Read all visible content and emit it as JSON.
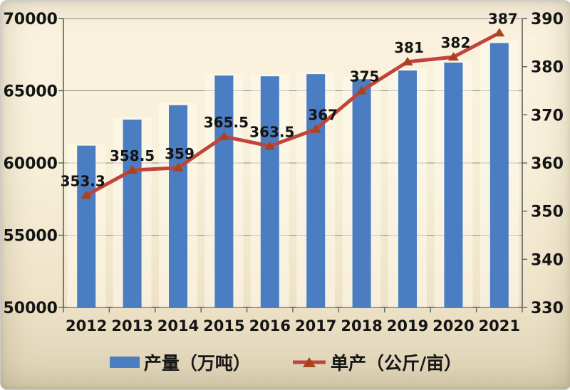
{
  "chart_data": {
    "type": "bar+line",
    "title": "",
    "categories": [
      "2012",
      "2013",
      "2014",
      "2015",
      "2016",
      "2017",
      "2018",
      "2019",
      "2020",
      "2021"
    ],
    "series": [
      {
        "name": "产量（万吨）",
        "type": "bar",
        "axis": "left",
        "values": [
          61200,
          63000,
          64000,
          66050,
          66000,
          66150,
          65800,
          66400,
          66950,
          68300
        ]
      },
      {
        "name": "单产（公斤/亩）",
        "type": "line",
        "axis": "right",
        "values": [
          353.3,
          358.5,
          359,
          365.5,
          363.5,
          367,
          375,
          381,
          382,
          387
        ],
        "data_labels": [
          "353.3",
          "358.5",
          "359",
          "365.5",
          "363.5",
          "367",
          "375",
          "381",
          "382",
          "387"
        ]
      }
    ],
    "left_axis": {
      "min": 50000,
      "max": 70000,
      "step": 5000,
      "tick_labels": [
        "70000",
        "65000",
        "60000",
        "55000",
        "50000"
      ]
    },
    "right_axis": {
      "min": 330,
      "max": 390,
      "step": 10,
      "tick_labels": [
        "390",
        "380",
        "370",
        "360",
        "350",
        "340",
        "330"
      ]
    },
    "grid": "horizontal-major",
    "legend_position": "bottom"
  },
  "legend": {
    "items": [
      {
        "label": "产量（万吨）",
        "marker": "bar-swatch"
      },
      {
        "label": "单产（公斤/亩）",
        "marker": "line-triangle-marker"
      }
    ]
  },
  "colors": {
    "bar": "#4b7dc2",
    "bar_glow": "rgba(255,251,240,0.5)",
    "line": "#c0443c",
    "line_marker": "#a8431f",
    "text": "#141414",
    "gridline": "#8c8c8c",
    "axis": "#5f5f5f"
  }
}
